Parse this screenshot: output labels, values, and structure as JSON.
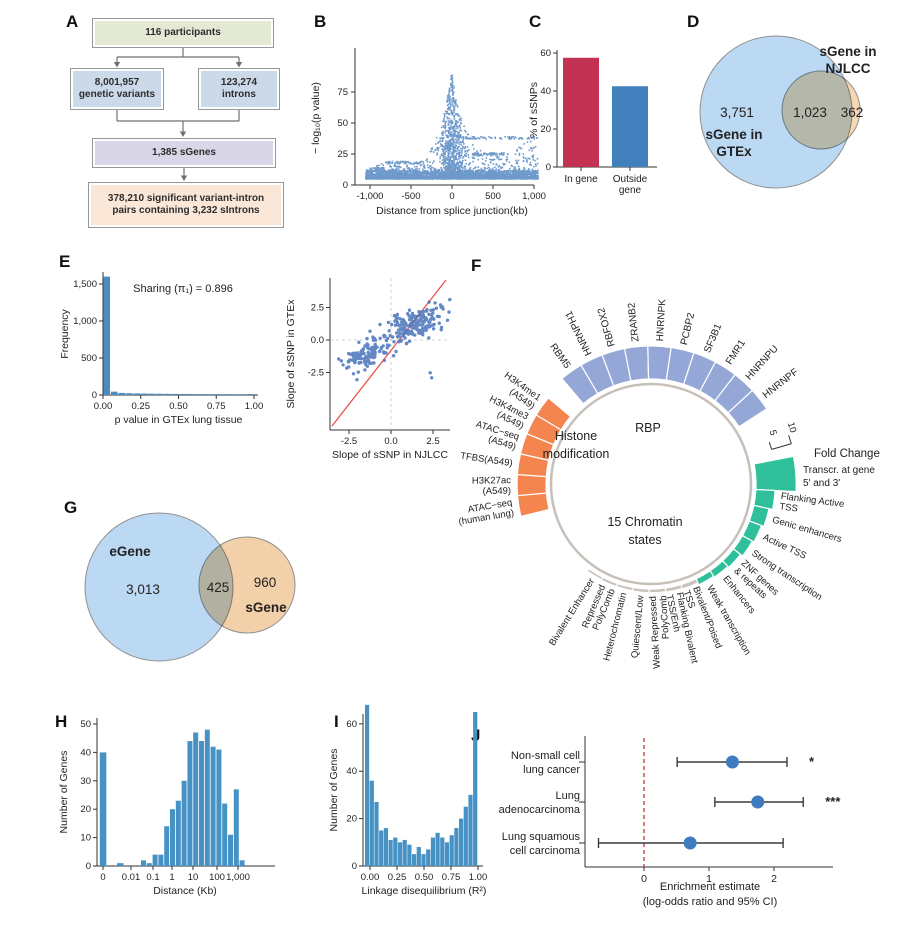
{
  "panel_letters": [
    "A",
    "B",
    "C",
    "D",
    "E",
    "F",
    "G",
    "H",
    "I",
    "J"
  ],
  "chart_data": [
    {
      "panel": "A",
      "type": "flowchart",
      "boxes": [
        {
          "text": "116 participants",
          "fill": "#e4e9d5"
        },
        {
          "text": "8,001,957\ngenetic variants",
          "fill": "#ccd9e8"
        },
        {
          "text": "123,274\nintrons",
          "fill": "#ccd9e8"
        },
        {
          "text": "1,385 sGenes",
          "fill": "#d9d6e8"
        },
        {
          "text": "378,210 significant variant-intron\npairs containing 3,232 sIntrons",
          "fill": "#fbe7d7"
        }
      ]
    },
    {
      "panel": "B",
      "type": "scatter",
      "xlabel": "Distance from splice junction(kb)",
      "ylabel": "− log₁₀(p value)",
      "xlim": [
        -1100,
        1100
      ],
      "ylim": [
        0,
        95
      ],
      "xticks": [
        {
          "v": -1000,
          "label": "-1,000"
        },
        {
          "v": -500,
          "label": "-500"
        },
        {
          "v": 0,
          "label": "0"
        },
        {
          "v": 500,
          "label": "500"
        },
        {
          "v": 1000,
          "label": "1,000"
        }
      ],
      "yticks": [
        0,
        25,
        50,
        75
      ],
      "point_color": "#4a80bf",
      "envelope": [
        [
          -1050,
          13
        ],
        [
          -900,
          16
        ],
        [
          -750,
          20
        ],
        [
          -600,
          15
        ],
        [
          -450,
          18
        ],
        [
          -350,
          22
        ],
        [
          -250,
          30
        ],
        [
          -150,
          45
        ],
        [
          -80,
          62
        ],
        [
          -30,
          80
        ],
        [
          0,
          93
        ],
        [
          30,
          75
        ],
        [
          80,
          60
        ],
        [
          150,
          48
        ],
        [
          250,
          40
        ],
        [
          350,
          30
        ],
        [
          450,
          26
        ],
        [
          600,
          24
        ],
        [
          750,
          26
        ],
        [
          900,
          38
        ],
        [
          1050,
          38
        ]
      ],
      "streaks": [
        {
          "y": 38,
          "x0": 100,
          "x1": 1040,
          "n": 70
        },
        {
          "y": 25,
          "x0": 250,
          "x1": 700,
          "n": 55
        },
        {
          "y": 18,
          "x0": -800,
          "x1": -380,
          "n": 45
        },
        {
          "y": 13,
          "x0": -1000,
          "x1": -830,
          "n": 25
        }
      ]
    },
    {
      "panel": "C",
      "type": "bar",
      "ylabel": "% of sSNPs",
      "ylim": [
        0,
        60
      ],
      "yticks": [
        0,
        20,
        40,
        60
      ],
      "categories": [
        "In gene",
        "Outside\ngene"
      ],
      "values": [
        57.5,
        42.5
      ],
      "colors": [
        "#c43253",
        "#417fbd"
      ]
    },
    {
      "panel": "D",
      "type": "venn",
      "left": {
        "label": "sGene in\nGTEx",
        "value": "3,751",
        "color": "#bcd9f3"
      },
      "right": {
        "label": "sGene in\nNJLCC",
        "value": "362",
        "color": "#f6d7b4"
      },
      "overlap_value": "1,023"
    },
    {
      "panel": "E",
      "type": "histogram",
      "xlabel": "p value in GTEx lung tissue",
      "ylabel": "Frequency",
      "annotation": "Sharing (π₁) = 0.896",
      "bin_width": 0.05,
      "color": "#4e8bbc",
      "ylim": [
        0,
        1700
      ],
      "values": [
        1600,
        45,
        28,
        24,
        22,
        20,
        18,
        17,
        16,
        15,
        14,
        14,
        13,
        13,
        12,
        12,
        12,
        11,
        11,
        13
      ],
      "yticks": [
        {
          "v": 0,
          "label": "0"
        },
        {
          "v": 500,
          "label": "500"
        },
        {
          "v": 1000,
          "label": "1,000"
        },
        {
          "v": 1500,
          "label": "1,500"
        }
      ],
      "xticks": [
        {
          "v": 0,
          "label": "0.00"
        },
        {
          "v": 0.25,
          "label": "0.25"
        },
        {
          "v": 0.5,
          "label": "0.50"
        },
        {
          "v": 0.75,
          "label": "0.75"
        },
        {
          "v": 1,
          "label": "1.00"
        }
      ]
    },
    {
      "panel": "E",
      "type": "scatter",
      "xlabel": "Slope of sSNP in NJLCC",
      "ylabel": "Slope of sSNP in GTEx",
      "xticks": [
        {
          "v": -2.5,
          "label": "-2.5"
        },
        {
          "v": 0,
          "label": "0.0"
        },
        {
          "v": 2.5,
          "label": "2.5"
        }
      ],
      "yticks": [
        {
          "v": -2.5,
          "label": "-2.5"
        },
        {
          "v": 0,
          "label": "0.0"
        },
        {
          "v": 2.5,
          "label": "2.5"
        }
      ],
      "clusters": [
        {
          "cx": 1.35,
          "cy": 1.15,
          "sx": 0.75,
          "sy": 0.55,
          "n": 175
        },
        {
          "cx": -1.5,
          "cy": -1.15,
          "sx": 0.65,
          "sy": 0.55,
          "n": 115
        }
      ],
      "outliers": 12,
      "point_color": "#4a74ba",
      "line_color": "#e8534a"
    },
    {
      "panel": "F",
      "type": "circular_bar",
      "axis": {
        "label": "Fold Change",
        "ticks": [
          "5",
          "10"
        ]
      },
      "groups": [
        {
          "name": "RBP",
          "color": "#94a7d7",
          "items": [
            {
              "name": "RBM5"
            },
            {
              "name": "HNRNPH1"
            },
            {
              "name": "RBFOX2"
            },
            {
              "name": "ZRANB2"
            },
            {
              "name": "HNRNPK"
            },
            {
              "name": "PCBP2"
            },
            {
              "name": "SF3B1"
            },
            {
              "name": "FMR1"
            },
            {
              "name": "HNRNPU"
            },
            {
              "name": "HNRNPF"
            }
          ]
        },
        {
          "name": "Histone\nmodification",
          "color": "#f5854f",
          "items": [
            {
              "name": "H3K4me1\n(A549)"
            },
            {
              "name": "H3K4me3\n(A549)"
            },
            {
              "name": "ATAC−seq\n(A549)"
            },
            {
              "name": "TFBS(A549)"
            },
            {
              "name": "H3K27ac\n(A549)"
            },
            {
              "name": "ATAC−seq\n(human lung)"
            }
          ]
        },
        {
          "name": "15 Chromatin\nstates",
          "items": [
            {
              "name": "Transcr. at gene\n5' and 3'",
              "value": 9.8,
              "color": "#2fc09b"
            },
            {
              "name": "Flanking Active\nTSS",
              "value": 4.7,
              "color": "#2fc09b"
            },
            {
              "name": "Genic enhancers",
              "value": 3.8,
              "color": "#2fc09b"
            },
            {
              "name": "Active TSS",
              "value": 3.2,
              "color": "#2fc09b"
            },
            {
              "name": "Strong transcription",
              "value": 2.8,
              "color": "#2fc09b"
            },
            {
              "name": "ZNF genes\n& repeats",
              "value": 2.2,
              "color": "#2fc09b"
            },
            {
              "name": "Enhancers",
              "value": 1.9,
              "color": "#2fc09b"
            },
            {
              "name": "Weak transcription",
              "value": 1.6,
              "color": "#2fc09b"
            },
            {
              "name": "Bivalent/Poised\nTSS",
              "value": 1.1,
              "color": "#c9c3bc"
            },
            {
              "name": "Flanking Bivalent\nTSS/Enh",
              "value": 1.0,
              "color": "#c9c3bc"
            },
            {
              "name": "Weak Repressed\nPolyComb",
              "value": 0.9,
              "color": "#c9c3bc"
            },
            {
              "name": "Quiescent/Low",
              "value": 0.9,
              "color": "#c9c3bc"
            },
            {
              "name": "Heterochromatin",
              "value": 0.8,
              "color": "#c9c3bc"
            },
            {
              "name": "Repressed\nPolyComb",
              "value": 0.8,
              "color": "#c9c3bc"
            },
            {
              "name": "Bivalent Enhancer",
              "value": 0.7,
              "color": "#c9c3bc"
            }
          ]
        }
      ]
    },
    {
      "panel": "G",
      "type": "venn",
      "left": {
        "label": "eGene",
        "value": "3,013",
        "color": "#bcd9f3"
      },
      "right": {
        "label": "sGene",
        "value": "960",
        "color": "#f2d0a9"
      },
      "overlap_value": "425"
    },
    {
      "panel": "H",
      "type": "histogram",
      "xlabel": "Distance (Kb)",
      "ylabel": "Number of Genes",
      "color": "#4792c4",
      "yticks": [
        0,
        10,
        20,
        30,
        40,
        50
      ],
      "xtick_labels": [
        "0",
        "0.01",
        "0.1",
        "1",
        "10",
        "100",
        "1,000"
      ],
      "bars_isolated": [
        {
          "v": 40
        },
        {
          "v": 1
        }
      ],
      "bars_run": [
        2,
        1,
        4,
        4,
        14,
        20,
        23,
        30,
        44,
        47,
        44,
        48,
        42,
        41,
        22,
        11,
        27,
        2
      ]
    },
    {
      "panel": "I",
      "type": "histogram",
      "xlabel": "Linkage disequilibrium (R²)",
      "ylabel": "Number of Genes",
      "color": "#4792c4",
      "yticks": [
        0,
        20,
        40,
        60
      ],
      "xticks": [
        {
          "v": 0,
          "label": "0.00"
        },
        {
          "v": 0.25,
          "label": "0.25"
        },
        {
          "v": 0.5,
          "label": "0.50"
        },
        {
          "v": 0.75,
          "label": "0.75"
        },
        {
          "v": 1,
          "label": "1.00"
        }
      ],
      "values": [
        68,
        36,
        27,
        15,
        16,
        11,
        12,
        10,
        11,
        9,
        5,
        8,
        5,
        7,
        12,
        14,
        12,
        10,
        13,
        16,
        20,
        25,
        30,
        65
      ]
    },
    {
      "panel": "J",
      "type": "forest",
      "xlabel": "Enrichment estimate\n(log-odds ratio and 95% CI)",
      "xticks": [
        0,
        1,
        2
      ],
      "refline": 0,
      "point_color": "#3f7cbf",
      "sig_color": "#a32525",
      "refline_color": "#c0392b",
      "rows": [
        {
          "label": "Non-small cell\nlung cancer",
          "estimate": 1.36,
          "ci": [
            0.51,
            2.2
          ],
          "sig": "*"
        },
        {
          "label": "Lung\nadenocarcinoma",
          "estimate": 1.75,
          "ci": [
            1.09,
            2.45
          ],
          "sig": "***"
        },
        {
          "label": "Lung squamous\ncell carcinoma",
          "estimate": 0.71,
          "ci": [
            -0.7,
            2.14
          ],
          "sig": ""
        }
      ]
    }
  ]
}
